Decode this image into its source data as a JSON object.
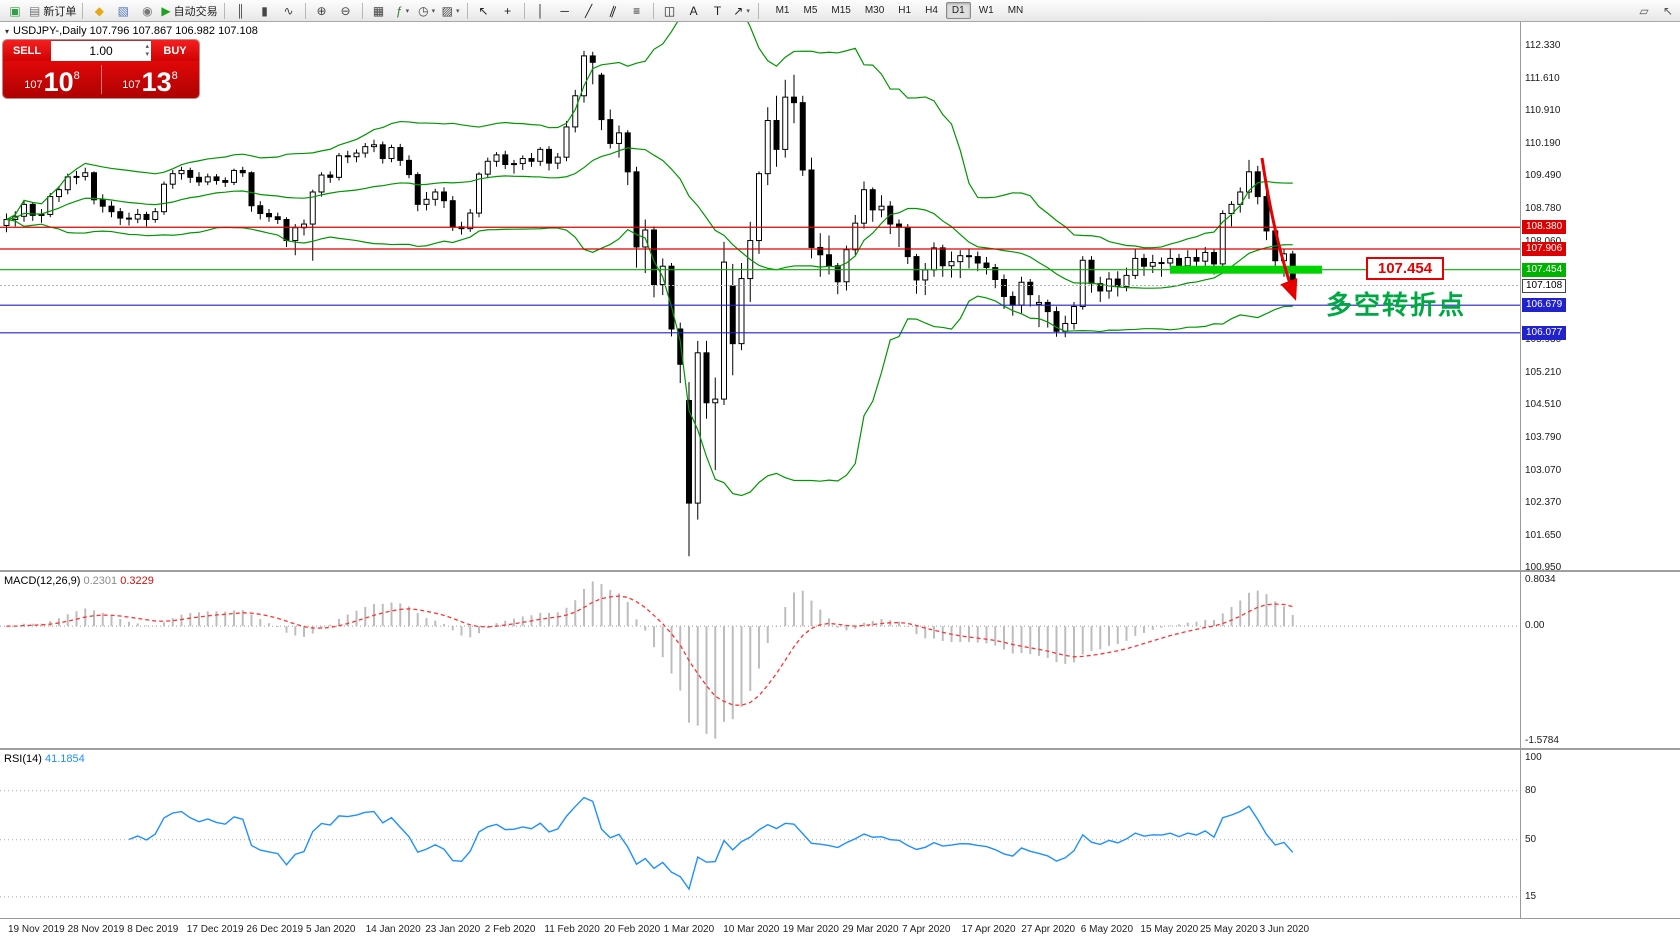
{
  "toolbar": {
    "items": [
      {
        "t": "i",
        "n": "terminal-icon",
        "g": "▣",
        "c": "#2f9e44"
      },
      {
        "t": "i",
        "n": "new-order-button",
        "g": "▤",
        "c": "#777777",
        "l": "新订单"
      },
      {
        "t": "s"
      },
      {
        "t": "i",
        "n": "metaeditor-icon",
        "g": "◆",
        "c": "#e6a817"
      },
      {
        "t": "i",
        "n": "profile-icon",
        "g": "▧",
        "c": "#5577bb"
      },
      {
        "t": "i",
        "n": "alerts-icon",
        "g": "◉",
        "c": "#777777"
      },
      {
        "t": "i",
        "n": "auto-trading-button",
        "g": "▶",
        "c": "#21a121",
        "l": "自动交易"
      },
      {
        "t": "s"
      },
      {
        "t": "i",
        "n": "bar-chart-icon",
        "g": "║",
        "c": "#444444"
      },
      {
        "t": "i",
        "n": "candlestick-icon",
        "g": "▮",
        "c": "#444444"
      },
      {
        "t": "i",
        "n": "line-chart-icon",
        "g": "∿",
        "c": "#444444"
      },
      {
        "t": "s"
      },
      {
        "t": "i",
        "n": "zoom-in-icon",
        "g": "⊕",
        "c": "#444444"
      },
      {
        "t": "i",
        "n": "zoom-out-icon",
        "g": "⊖",
        "c": "#444444"
      },
      {
        "t": "s"
      },
      {
        "t": "i",
        "n": "tile-windows-icon",
        "g": "▦",
        "c": "#444444"
      },
      {
        "t": "i",
        "n": "indicators-icon",
        "g": "ƒ",
        "c": "#2c7d2c",
        "caret": 1
      },
      {
        "t": "i",
        "n": "periods-icon",
        "g": "◷",
        "c": "#444444",
        "caret": 1
      },
      {
        "t": "i",
        "n": "templates-icon",
        "g": "▨",
        "c": "#444444",
        "caret": 1
      },
      {
        "t": "s"
      },
      {
        "t": "i",
        "n": "cursor-icon",
        "g": "↖",
        "c": "#222222"
      },
      {
        "t": "i",
        "n": "crosshair-icon",
        "g": "+",
        "c": "#222222"
      },
      {
        "t": "s"
      },
      {
        "t": "i",
        "n": "vertical-line-icon",
        "g": "│",
        "c": "#222222"
      },
      {
        "t": "i",
        "n": "horizontal-line-icon",
        "g": "─",
        "c": "#222222"
      },
      {
        "t": "i",
        "n": "trendline-icon",
        "g": "╱",
        "c": "#222222"
      },
      {
        "t": "i",
        "n": "channel-icon",
        "g": "∥",
        "c": "#222222"
      },
      {
        "t": "i",
        "n": "fibonacci-icon",
        "g": "≡",
        "c": "#222222"
      },
      {
        "t": "s"
      },
      {
        "t": "i",
        "n": "shapes-icon",
        "g": "◫",
        "c": "#222222"
      },
      {
        "t": "i",
        "n": "text-icon",
        "g": "A",
        "c": "#222222"
      },
      {
        "t": "i",
        "n": "text-label-icon",
        "g": "T",
        "c": "#222222"
      },
      {
        "t": "i",
        "n": "arrows-icon",
        "g": "↗",
        "c": "#222222",
        "caret": 1
      },
      {
        "t": "s"
      }
    ],
    "timeframes": [
      "M1",
      "M5",
      "M15",
      "M30",
      "H1",
      "H4",
      "D1",
      "W1",
      "MN"
    ],
    "active_timeframe": "D1",
    "right_items": [
      {
        "n": "chart-comment-icon",
        "g": "▱",
        "c": "#555555"
      },
      {
        "n": "pointer-tool-icon",
        "g": "↖",
        "c": "#555555"
      }
    ]
  },
  "chart": {
    "symbol_line": "USDJPY-,Daily  107.796 107.867 106.982 107.108",
    "open": "107.796",
    "high": "107.867",
    "low": "106.982",
    "close": "107.108"
  },
  "trade_panel": {
    "sell_label": "SELL",
    "buy_label": "BUY",
    "volume": "1.00",
    "bid_small": "107",
    "bid_big": "10",
    "bid_sup": "8",
    "ask_small": "107",
    "ask_big": "13",
    "ask_sup": "8"
  },
  "price_axis": {
    "ticks": [
      "112.330",
      "111.610",
      "110.910",
      "110.190",
      "109.490",
      "108.780",
      "108.060",
      "107.350",
      "106.640",
      "105.930",
      "105.210",
      "104.510",
      "103.790",
      "103.070",
      "102.370",
      "101.650",
      "100.950"
    ],
    "chips": [
      {
        "text": "108.380",
        "bg": "#dd0000"
      },
      {
        "text": "107.906",
        "bg": "#dd0000"
      },
      {
        "text": "107.454",
        "bg": "#00b300"
      },
      {
        "text": "107.108",
        "bg": "#ffffff",
        "fg": "#000000",
        "border": "#444444"
      },
      {
        "text": "106.679",
        "bg": "#2222cc"
      },
      {
        "text": "106.077",
        "bg": "#2222cc"
      }
    ]
  },
  "hlines": [
    {
      "price": 108.38,
      "color": "#dd0000"
    },
    {
      "price": 107.906,
      "color": "#dd0000"
    },
    {
      "price": 107.454,
      "color": "#00b300"
    },
    {
      "price": 106.679,
      "color": "#2222cc"
    },
    {
      "price": 106.077,
      "color": "#2222cc"
    }
  ],
  "bid_line": {
    "price": 107.108,
    "color": "#b0b0b0"
  },
  "mac d_note": "",
  "macd": {
    "name": "MACD(12,26,9)",
    "value_main": "0.2301",
    "value_signal": "0.3229",
    "axis_top": "0.8034",
    "axis_zero": "0.00",
    "axis_bottom": "-1.5784",
    "hist_color": "#bdbdbd",
    "signal_color": "#ff3333"
  },
  "rsi": {
    "name": "RSI(14)",
    "value": "41.1854",
    "axis": [
      100,
      80,
      50,
      15
    ],
    "levels": [
      80,
      50,
      15
    ],
    "color": "#1e90ff"
  },
  "dates": [
    "19 Nov 2019",
    "28 Nov 2019",
    "8 Dec 2019",
    "17 Dec 2019",
    "26 Dec 2019",
    "5 Jan 2020",
    "14 Jan 2020",
    "23 Jan 2020",
    "2 Feb 2020",
    "11 Feb 2020",
    "20 Feb 2020",
    "1 Mar 2020",
    "10 Mar 2020",
    "19 Mar 2020",
    "29 Mar 2020",
    "7 Apr 2020",
    "17 Apr 2020",
    "27 Apr 2020",
    "6 May 2020",
    "15 May 2020",
    "25 May 2020",
    "3 Jun 2020"
  ],
  "annotations": {
    "callout_text": "107.454",
    "callout_color": "#e60000",
    "turning_point": "多空转折点",
    "turning_point_color": "#00a843",
    "arrow_color": "#e60000",
    "thick_line_price": 107.454,
    "thick_line_color": "#00d300"
  },
  "chart_data": {
    "type": "candlestick",
    "symbol": "USDJPY-",
    "timeframe": "Daily",
    "price_range": [
      100.9,
      112.86
    ],
    "bollinger": {
      "period": 20,
      "deviation": 2,
      "color": "#009600"
    },
    "candles": [
      [
        108.42,
        108.68,
        108.27,
        108.55
      ],
      [
        108.55,
        108.73,
        108.4,
        108.62
      ],
      [
        108.62,
        108.96,
        108.5,
        108.88
      ],
      [
        108.88,
        108.93,
        108.52,
        108.64
      ],
      [
        108.64,
        108.78,
        108.48,
        108.66
      ],
      [
        108.66,
        109.13,
        108.6,
        109.05
      ],
      [
        109.05,
        109.28,
        108.93,
        109.2
      ],
      [
        109.2,
        109.55,
        109.1,
        109.48
      ],
      [
        109.48,
        109.61,
        109.32,
        109.49
      ],
      [
        109.49,
        109.68,
        109.4,
        109.57
      ],
      [
        109.57,
        109.6,
        108.88,
        108.98
      ],
      [
        108.98,
        109.1,
        108.7,
        108.84
      ],
      [
        108.84,
        108.95,
        108.6,
        108.72
      ],
      [
        108.72,
        108.8,
        108.43,
        108.58
      ],
      [
        108.58,
        108.7,
        108.42,
        108.56
      ],
      [
        108.56,
        108.78,
        108.47,
        108.66
      ],
      [
        108.66,
        108.72,
        108.4,
        108.55
      ],
      [
        108.55,
        108.8,
        108.48,
        108.72
      ],
      [
        108.72,
        109.38,
        108.65,
        109.32
      ],
      [
        109.32,
        109.63,
        109.22,
        109.55
      ],
      [
        109.55,
        109.7,
        109.42,
        109.62
      ],
      [
        109.62,
        109.68,
        109.35,
        109.47
      ],
      [
        109.47,
        109.58,
        109.28,
        109.37
      ],
      [
        109.37,
        109.55,
        109.3,
        109.48
      ],
      [
        109.48,
        109.54,
        109.31,
        109.4
      ],
      [
        109.4,
        109.47,
        109.26,
        109.36
      ],
      [
        109.36,
        109.66,
        109.3,
        109.62
      ],
      [
        109.62,
        109.7,
        109.48,
        109.57
      ],
      [
        109.57,
        109.6,
        108.72,
        108.85
      ],
      [
        108.85,
        108.95,
        108.55,
        108.68
      ],
      [
        108.68,
        108.78,
        108.5,
        108.61
      ],
      [
        108.61,
        108.7,
        108.45,
        108.55
      ],
      [
        108.55,
        108.6,
        107.95,
        108.09
      ],
      [
        108.09,
        108.45,
        107.77,
        108.37
      ],
      [
        108.37,
        108.55,
        108.2,
        108.45
      ],
      [
        108.45,
        109.2,
        107.65,
        109.15
      ],
      [
        109.15,
        109.58,
        109.05,
        109.52
      ],
      [
        109.52,
        109.6,
        109.35,
        109.47
      ],
      [
        109.47,
        110.0,
        109.4,
        109.94
      ],
      [
        109.94,
        110.05,
        109.78,
        109.92
      ],
      [
        109.92,
        110.08,
        109.8,
        110.0
      ],
      [
        110.0,
        110.22,
        109.9,
        110.14
      ],
      [
        110.14,
        110.29,
        110.02,
        110.18
      ],
      [
        110.18,
        110.25,
        109.77,
        109.88
      ],
      [
        109.88,
        110.18,
        109.8,
        110.12
      ],
      [
        110.12,
        110.2,
        109.72,
        109.84
      ],
      [
        109.84,
        109.95,
        109.45,
        109.53
      ],
      [
        109.53,
        109.58,
        108.73,
        108.88
      ],
      [
        108.88,
        109.15,
        108.75,
        108.99
      ],
      [
        108.99,
        109.22,
        108.85,
        109.15
      ],
      [
        109.15,
        109.25,
        108.8,
        108.96
      ],
      [
        108.96,
        109.06,
        108.3,
        108.39
      ],
      [
        108.39,
        108.5,
        108.22,
        108.35
      ],
      [
        108.35,
        108.78,
        108.28,
        108.69
      ],
      [
        108.69,
        109.58,
        108.6,
        109.54
      ],
      [
        109.54,
        109.9,
        109.45,
        109.82
      ],
      [
        109.82,
        110.02,
        109.7,
        109.96
      ],
      [
        109.96,
        110.05,
        109.65,
        109.75
      ],
      [
        109.75,
        109.85,
        109.55,
        109.77
      ],
      [
        109.77,
        109.95,
        109.63,
        109.88
      ],
      [
        109.88,
        110.0,
        109.7,
        109.82
      ],
      [
        109.82,
        110.13,
        109.72,
        110.08
      ],
      [
        110.08,
        110.15,
        109.62,
        109.78
      ],
      [
        109.78,
        110.0,
        109.65,
        109.91
      ],
      [
        109.91,
        110.7,
        109.82,
        110.57
      ],
      [
        110.57,
        111.38,
        110.45,
        111.25
      ],
      [
        111.25,
        112.23,
        111.1,
        112.12
      ],
      [
        112.12,
        112.21,
        111.5,
        111.98
      ],
      [
        111.7,
        111.75,
        110.5,
        110.73
      ],
      [
        110.73,
        110.95,
        110.1,
        110.21
      ],
      [
        110.21,
        110.6,
        109.9,
        110.44
      ],
      [
        110.44,
        110.5,
        109.3,
        109.59
      ],
      [
        109.59,
        109.7,
        107.5,
        107.95
      ],
      [
        107.95,
        108.55,
        107.38,
        108.32
      ],
      [
        108.32,
        108.4,
        106.85,
        107.13
      ],
      [
        107.13,
        107.7,
        106.9,
        107.53
      ],
      [
        107.53,
        107.6,
        106.0,
        106.16
      ],
      [
        106.16,
        106.3,
        104.98,
        105.39
      ],
      [
        104.6,
        105.0,
        101.2,
        102.36
      ],
      [
        102.36,
        105.9,
        102.0,
        105.64
      ],
      [
        105.64,
        105.9,
        104.2,
        104.55
      ],
      [
        104.55,
        105.1,
        103.08,
        104.63
      ],
      [
        104.63,
        108.06,
        104.5,
        107.62
      ],
      [
        107.1,
        107.58,
        105.15,
        105.84
      ],
      [
        105.84,
        107.6,
        105.7,
        107.26
      ],
      [
        107.26,
        108.5,
        106.75,
        108.09
      ],
      [
        108.09,
        109.6,
        107.8,
        109.55
      ],
      [
        109.55,
        111.0,
        109.3,
        110.71
      ],
      [
        110.71,
        111.25,
        109.7,
        110.08
      ],
      [
        110.08,
        111.6,
        109.9,
        111.22
      ],
      [
        111.22,
        111.71,
        110.65,
        111.1
      ],
      [
        111.1,
        111.25,
        109.5,
        109.63
      ],
      [
        109.63,
        109.9,
        107.7,
        107.94
      ],
      [
        107.94,
        108.25,
        107.3,
        107.78
      ],
      [
        107.78,
        108.2,
        107.35,
        107.54
      ],
      [
        107.54,
        107.6,
        106.92,
        107.19
      ],
      [
        107.19,
        107.98,
        107.0,
        107.89
      ],
      [
        107.89,
        108.65,
        107.78,
        108.47
      ],
      [
        108.47,
        109.38,
        108.35,
        109.2
      ],
      [
        109.2,
        109.25,
        108.5,
        108.76
      ],
      [
        108.76,
        109.08,
        108.6,
        108.84
      ],
      [
        108.84,
        108.95,
        108.23,
        108.45
      ],
      [
        108.45,
        108.55,
        107.95,
        108.38
      ],
      [
        108.38,
        108.45,
        107.58,
        107.74
      ],
      [
        107.74,
        107.8,
        106.93,
        107.23
      ],
      [
        107.23,
        107.6,
        106.9,
        107.45
      ],
      [
        107.45,
        108.05,
        107.3,
        107.93
      ],
      [
        107.93,
        108.0,
        107.3,
        107.54
      ],
      [
        107.54,
        107.85,
        107.28,
        107.63
      ],
      [
        107.63,
        107.88,
        107.27,
        107.76
      ],
      [
        107.76,
        107.92,
        107.48,
        107.74
      ],
      [
        107.74,
        107.85,
        107.42,
        107.6
      ],
      [
        107.6,
        107.73,
        107.35,
        107.5
      ],
      [
        107.5,
        107.58,
        107.05,
        107.24
      ],
      [
        107.24,
        107.35,
        106.6,
        106.87
      ],
      [
        106.87,
        106.98,
        106.45,
        106.68
      ],
      [
        106.68,
        107.3,
        106.5,
        107.18
      ],
      [
        107.18,
        107.25,
        106.65,
        106.91
      ],
      [
        106.7,
        106.9,
        106.2,
        106.74
      ],
      [
        106.74,
        106.8,
        106.19,
        106.54
      ],
      [
        106.54,
        106.65,
        105.99,
        106.11
      ],
      [
        106.11,
        106.45,
        105.98,
        106.28
      ],
      [
        106.28,
        106.75,
        106.15,
        106.65
      ],
      [
        106.65,
        107.75,
        106.58,
        107.66
      ],
      [
        107.66,
        107.75,
        106.95,
        107.15
      ],
      [
        107.15,
        107.3,
        106.75,
        106.99
      ],
      [
        106.99,
        107.4,
        106.82,
        107.25
      ],
      [
        107.25,
        107.42,
        106.87,
        107.09
      ],
      [
        107.09,
        107.5,
        106.98,
        107.33
      ],
      [
        107.33,
        107.9,
        107.25,
        107.7
      ],
      [
        107.7,
        107.8,
        107.32,
        107.53
      ],
      [
        107.53,
        107.78,
        107.38,
        107.61
      ],
      [
        107.61,
        107.72,
        107.3,
        107.6
      ],
      [
        107.6,
        107.92,
        107.5,
        107.7
      ],
      [
        107.7,
        107.8,
        107.4,
        107.54
      ],
      [
        107.54,
        107.88,
        107.42,
        107.72
      ],
      [
        107.72,
        107.9,
        107.5,
        107.64
      ],
      [
        107.64,
        107.95,
        107.52,
        107.83
      ],
      [
        107.83,
        107.9,
        107.35,
        107.58
      ],
      [
        107.58,
        108.75,
        107.5,
        108.68
      ],
      [
        108.68,
        108.95,
        108.4,
        108.88
      ],
      [
        108.88,
        109.25,
        108.7,
        109.15
      ],
      [
        109.15,
        109.85,
        109.0,
        109.59
      ],
      [
        109.59,
        109.72,
        108.88,
        109.05
      ],
      [
        109.05,
        109.2,
        108.1,
        108.3
      ],
      [
        108.3,
        108.42,
        107.45,
        107.65
      ],
      [
        107.65,
        107.9,
        107.3,
        107.8
      ],
      [
        107.796,
        107.867,
        106.982,
        107.108
      ]
    ]
  }
}
